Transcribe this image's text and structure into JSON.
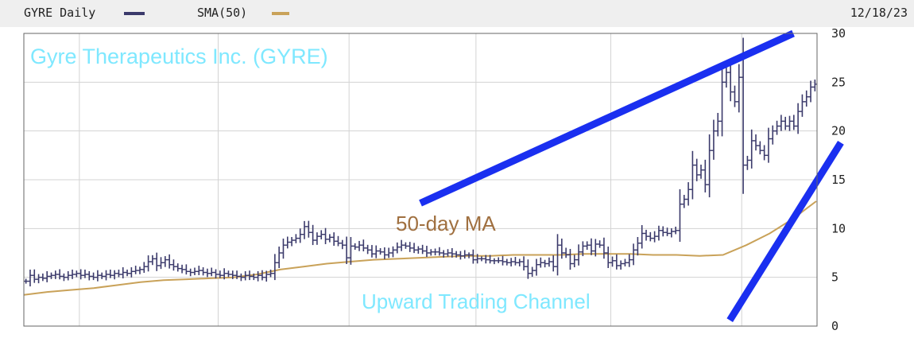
{
  "header": {
    "ticker_label": "GYRE Daily",
    "sma_label": "SMA(50)",
    "date": "12/18/23"
  },
  "colors": {
    "price": "#3b3a6b",
    "sma": "#c9a259",
    "channel": "#1a2ff0",
    "title_text": "#7fe8ff",
    "ma_text": "#a07040"
  },
  "chart_data": {
    "type": "line",
    "title": "Gyre Therapeutics Inc. (GYRE)",
    "ylim": [
      0,
      30
    ],
    "yticks": [
      0,
      5,
      10,
      15,
      20,
      25,
      30
    ],
    "grid": true,
    "legend": "top-left",
    "annotations": {
      "title": "Gyre Therapeutics Inc. (GYRE)",
      "ma": "50-day MA",
      "channel": "Upward Trading Channel"
    },
    "series": [
      {
        "name": "GYRE Daily",
        "style": "ohlc",
        "values": [
          4.6,
          5.2,
          4.8,
          5.0,
          4.9,
          5.1,
          5.2,
          5.3,
          5.1,
          5.0,
          5.2,
          5.3,
          5.4,
          5.2,
          5.3,
          5.1,
          5.0,
          5.2,
          5.1,
          5.3,
          5.2,
          5.4,
          5.3,
          5.5,
          5.4,
          5.6,
          5.7,
          5.8,
          6.1,
          6.6,
          6.9,
          6.2,
          6.5,
          6.8,
          6.3,
          6.1,
          5.9,
          5.8,
          5.6,
          5.5,
          5.6,
          5.7,
          5.5,
          5.4,
          5.5,
          5.3,
          5.2,
          5.4,
          5.3,
          5.2,
          5.1,
          5.0,
          5.2,
          5.1,
          5.0,
          5.2,
          5.0,
          5.3,
          5.4,
          6.5,
          7.5,
          8.3,
          8.6,
          8.8,
          9.0,
          9.4,
          10.2,
          9.6,
          8.8,
          9.2,
          9.4,
          8.9,
          9.1,
          8.7,
          8.5,
          8.3,
          7.0,
          8.2,
          8.1,
          8.3,
          8.0,
          7.8,
          7.4,
          7.7,
          7.6,
          7.3,
          7.5,
          7.8,
          8.1,
          8.3,
          8.2,
          8.0,
          7.8,
          7.9,
          7.7,
          7.5,
          7.6,
          7.6,
          7.5,
          7.4,
          7.5,
          7.4,
          7.3,
          7.2,
          7.3,
          7.3,
          6.8,
          6.9,
          6.9,
          6.8,
          6.7,
          6.7,
          6.7,
          6.6,
          6.5,
          6.6,
          6.5,
          6.6,
          6.1,
          5.4,
          5.7,
          6.3,
          6.5,
          6.4,
          6.6,
          6.1,
          8.3,
          7.5,
          7.3,
          6.4,
          6.8,
          7.6,
          8.2,
          8.3,
          7.7,
          8.4,
          8.3,
          7.5,
          6.5,
          6.7,
          6.2,
          6.4,
          6.5,
          6.8,
          7.8,
          8.5,
          9.5,
          9.2,
          9.0,
          9.2,
          9.8,
          9.6,
          9.5,
          9.7,
          9.8,
          12.5,
          13.0,
          14.0,
          16.5,
          15.5,
          16.0,
          14.5,
          18.0,
          20.0,
          21.0,
          25.0,
          26.0,
          24.0,
          23.0,
          25.5,
          16.5,
          17.0,
          19.0,
          18.5,
          18.0,
          17.5,
          19.2,
          20.0,
          20.5,
          21.0,
          20.5,
          21.0,
          20.5,
          22.0,
          23.0,
          23.5,
          24.5,
          24.8
        ]
      },
      {
        "name": "SMA(50)",
        "style": "line",
        "values": [
          3.2,
          3.5,
          3.7,
          3.9,
          4.2,
          4.5,
          4.7,
          4.8,
          4.9,
          5.0,
          5.3,
          5.8,
          6.1,
          6.4,
          6.6,
          6.8,
          6.9,
          7.0,
          7.1,
          7.2,
          7.2,
          7.3,
          7.3,
          7.3,
          7.4,
          7.4,
          7.4,
          7.3,
          7.3,
          7.2,
          7.3,
          8.3,
          9.5,
          11.0,
          12.8
        ]
      }
    ],
    "channel": {
      "upper": [
        [
          0.5,
          12.6
        ],
        [
          0.97,
          30.0
        ]
      ],
      "lower": [
        [
          0.89,
          0.6
        ],
        [
          1.03,
          18.8
        ]
      ]
    }
  }
}
